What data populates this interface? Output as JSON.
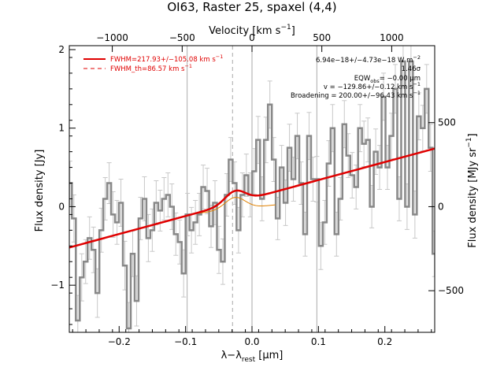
{
  "chart_data": {
    "type": "line",
    "title": "OI63, Raster 25, spaxel (4,4)",
    "xlabel": "λ−λ",
    "xlabel_sub": "rest",
    "xlabel_unit": " [μm]",
    "ylabel": "Flux density [Jy]",
    "top_axis_label": "Velocity [km s",
    "top_axis_label_sup": "−1",
    "top_axis_label_end": "]",
    "right_axis_label": "Flux density [MJy sr",
    "right_axis_label_sup": "−1",
    "right_axis_label_end": "]",
    "xlim": [
      -0.275,
      0.275
    ],
    "ylim": [
      -1.6,
      2.05
    ],
    "x_ticks": [
      -0.2,
      -0.1,
      0.0,
      0.1,
      0.2
    ],
    "x_tick_labels": [
      "−0.2",
      "−0.1",
      "0.0",
      "0.1",
      "0.2"
    ],
    "y_ticks": [
      -1,
      0,
      1,
      2
    ],
    "y_tick_labels": [
      "−1",
      "0",
      "1",
      "2"
    ],
    "top_ticks_um": [
      -0.2103,
      -0.1051,
      0.0,
      0.1051,
      0.2103
    ],
    "top_tick_labels": [
      "−1000",
      "−500",
      "0",
      "500",
      "1000"
    ],
    "right_ticks_jy": [
      -1.07,
      0.0,
      1.07
    ],
    "right_tick_labels": [
      "−500",
      "0",
      "500"
    ],
    "vertical_lines": [
      -0.0976,
      0.0,
      0.0976
    ],
    "dashed_line": -0.0293,
    "legend": [
      {
        "label": "FWHM=217.93+/−105.08 km s",
        "sup": "−1",
        "style": "solid"
      },
      {
        "label": "FWHM_th=86.57 km s",
        "sup": "−1",
        "style": "dashed"
      }
    ],
    "annotations": [
      "6.94e−18+/−4.73e−18 W m",
      "1.46σ",
      "EQW",
      "= −0.00 μm",
      "v = −129.86+/−0.12 km s",
      "Broadening = 200.00+/−96.43 km s"
    ],
    "annotation_sups": [
      "−2",
      "−1"
    ],
    "annotation_sub": "obs",
    "continuum": {
      "x": [
        -0.275,
        0.275
      ],
      "y": [
        -0.52,
        0.74
      ]
    },
    "gaussian": {
      "center": -0.0255,
      "sigma": 0.0152,
      "amplitude": 0.15
    },
    "series": [
      {
        "x": [
          -0.274,
          -0.2681,
          -0.2622,
          -0.2563,
          -0.2504,
          -0.2445,
          -0.2386,
          -0.2327,
          -0.2268,
          -0.2209,
          -0.215,
          -0.2091,
          -0.2032,
          -0.1973,
          -0.1914,
          -0.1855,
          -0.1796,
          -0.1737,
          -0.1678,
          -0.1619,
          -0.156,
          -0.1501,
          -0.1442,
          -0.1383,
          -0.1324,
          -0.1265,
          -0.1206,
          -0.1147,
          -0.1088,
          -0.1029,
          -0.097,
          -0.0911,
          -0.0852,
          -0.0793,
          -0.0734,
          -0.0675,
          -0.0616,
          -0.0557,
          -0.0498,
          -0.0439,
          -0.038,
          -0.0321,
          -0.0262,
          -0.0203,
          -0.0144,
          -0.0085,
          -0.0026,
          0.0033,
          0.0092,
          0.0151,
          0.021,
          0.0269,
          0.0328,
          0.0387,
          0.0446,
          0.0505,
          0.0564,
          0.0623,
          0.0682,
          0.0741,
          0.08,
          0.0859,
          0.0918,
          0.0977,
          0.1036,
          0.1095,
          0.1154,
          0.1213,
          0.1272,
          0.1331,
          0.139,
          0.1449,
          0.1508,
          0.1567,
          0.1626,
          0.1685,
          0.1744,
          0.1803,
          0.1862,
          0.1921,
          0.198,
          0.2039,
          0.2098,
          0.2157,
          0.2216,
          0.2275,
          0.2334,
          0.2393,
          0.2452,
          0.2511,
          0.257,
          0.2629,
          0.2688,
          0.2747
        ],
        "y": [
          0.3,
          -0.15,
          -1.45,
          -0.9,
          -0.7,
          -0.4,
          -0.55,
          -1.1,
          -0.3,
          0.1,
          0.3,
          -0.1,
          -0.2,
          0.05,
          -0.75,
          -1.55,
          -0.6,
          -1.2,
          -0.15,
          0.1,
          -0.4,
          -0.3,
          0.05,
          -0.05,
          0.1,
          0.15,
          0.0,
          -0.35,
          -0.45,
          -0.85,
          -0.1,
          -0.3,
          -0.2,
          -0.1,
          0.25,
          0.2,
          -0.25,
          0.05,
          -0.55,
          -0.7,
          0.15,
          0.6,
          0.3,
          -0.3,
          0.15,
          0.4,
          0.15,
          0.45,
          0.85,
          0.1,
          0.85,
          1.3,
          0.6,
          -0.15,
          0.5,
          0.05,
          0.75,
          0.35,
          0.9,
          0.3,
          -0.35,
          0.9,
          0.35,
          0.35,
          -0.5,
          -0.2,
          0.55,
          1.0,
          -0.35,
          0.1,
          1.05,
          0.65,
          0.4,
          0.25,
          1.0,
          0.8,
          0.85,
          0.0,
          0.7,
          0.5,
          1.4,
          0.5,
          0.9,
          1.5,
          0.1,
          1.85,
          0.0,
          1.85,
          -0.1,
          1.15,
          1.0,
          1.5,
          0.75,
          -0.6
        ],
        "err": [
          0.28,
          0.3,
          0.32,
          0.3,
          0.28,
          0.27,
          0.29,
          0.31,
          0.28,
          0.27,
          0.26,
          0.29,
          0.28,
          0.3,
          0.31,
          0.33,
          0.29,
          0.32,
          0.27,
          0.28,
          0.3,
          0.27,
          0.28,
          0.26,
          0.27,
          0.28,
          0.29,
          0.27,
          0.28,
          0.3,
          0.27,
          0.29,
          0.28,
          0.27,
          0.28,
          0.29,
          0.27,
          0.28,
          0.3,
          0.29,
          0.27,
          0.28,
          0.27,
          0.29,
          0.28,
          0.27,
          0.28,
          0.29,
          0.3,
          0.28,
          0.29,
          0.3,
          0.28,
          0.27,
          0.28,
          0.29,
          0.3,
          0.28,
          0.29,
          0.27,
          0.28,
          0.3,
          0.28,
          0.29,
          0.3,
          0.28,
          0.29,
          0.3,
          0.28,
          0.27,
          0.3,
          0.28,
          0.29,
          0.28,
          0.3,
          0.29,
          0.28,
          0.27,
          0.29,
          0.28,
          0.3,
          0.28,
          0.29,
          0.31,
          0.28,
          0.32,
          0.29,
          0.31,
          0.3,
          0.3,
          0.29,
          0.31,
          0.3,
          0.29
        ]
      }
    ],
    "colors": {
      "data": "#888888",
      "errorbar": "#c8c8c8",
      "fit": "#e00000",
      "gaussian": "#e08000",
      "vline": "#aaaaaa"
    }
  }
}
